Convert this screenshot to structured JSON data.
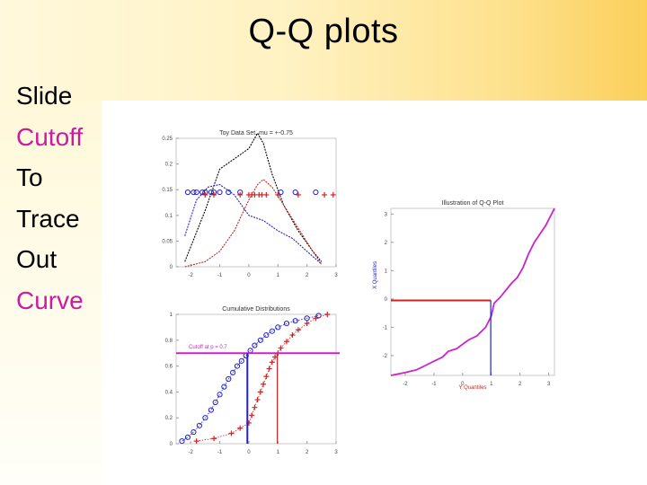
{
  "slide": {
    "title": "Q-Q plots",
    "bullets": [
      {
        "text": "Slide",
        "color": "#000000"
      },
      {
        "text": "Cutoff",
        "color": "#cc1aa3"
      },
      {
        "text": "To",
        "color": "#000000"
      },
      {
        "text": "Trace",
        "color": "#000000"
      },
      {
        "text": "Out",
        "color": "#000000"
      },
      {
        "text": "Curve",
        "color": "#cc1aa3"
      }
    ]
  },
  "chart_data": [
    {
      "type": "line",
      "title": "Toy Data Set, mu = +-0.75",
      "xlim": [
        -2.5,
        3
      ],
      "ylim": [
        0,
        0.25
      ],
      "x_ticks": [
        "-2",
        "-1",
        "0",
        "1",
        "2",
        "3"
      ],
      "y_ticks": [
        "0",
        "0.05",
        "0.1",
        "0.15",
        "0.2",
        "0.25"
      ],
      "series": [
        {
          "color": "#000000",
          "x": [
            -2.2,
            -1.5,
            -1,
            -0.5,
            0,
            0.3,
            0.5,
            0.8,
            1.2,
            1.7,
            2.2,
            2.5
          ],
          "y": [
            0.01,
            0.11,
            0.19,
            0.21,
            0.23,
            0.26,
            0.24,
            0.18,
            0.12,
            0.07,
            0.03,
            0.01
          ]
        },
        {
          "color": "#2222cc",
          "x": [
            -2.2,
            -1.8,
            -1.4,
            -1,
            -0.5,
            0,
            0.5,
            1,
            1.5,
            2,
            2.5
          ],
          "y": [
            0.06,
            0.13,
            0.155,
            0.16,
            0.14,
            0.1,
            0.09,
            0.07,
            0.055,
            0.03,
            0.005
          ]
        },
        {
          "color": "#cc2222",
          "x": [
            -2.2,
            -1.5,
            -1,
            -0.5,
            0,
            0.3,
            0.5,
            0.8,
            1.2,
            1.7,
            2.2,
            2.5
          ],
          "y": [
            0.0,
            0.01,
            0.03,
            0.07,
            0.13,
            0.16,
            0.17,
            0.155,
            0.12,
            0.075,
            0.03,
            0.005
          ]
        }
      ],
      "points": [
        {
          "color": "#2222cc",
          "marker": "circle",
          "y": 0.145,
          "x": [
            -2.1,
            -1.9,
            -1.8,
            -1.6,
            -1.5,
            -1.3,
            -1.2,
            -1.0,
            -0.7,
            -0.3,
            1.1,
            1.6,
            2.3
          ]
        },
        {
          "color": "#cc2222",
          "marker": "plus",
          "y": 0.14,
          "x": [
            -1.5,
            -1.2,
            -0.3,
            0,
            0.1,
            0.2,
            0.35,
            0.45,
            0.6,
            1.0,
            1.7,
            2.6,
            2.9
          ]
        }
      ]
    },
    {
      "type": "scatter",
      "title": "Cumulative Distributions",
      "annotation": "Cutoff at p = 0.7",
      "xlim": [
        -2.5,
        3
      ],
      "ylim": [
        0,
        1
      ],
      "x_ticks": [
        "-2",
        "-1",
        "0",
        "1",
        "2",
        "3"
      ],
      "y_ticks": [
        "0",
        "0.2",
        "0.4",
        "0.6",
        "0.8",
        "1"
      ],
      "cutoff_p": 0.7,
      "cutoff_x": [
        -0.05,
        0.98
      ],
      "series": [
        {
          "color": "#2222cc",
          "marker": "circle",
          "x": [
            -2.3,
            -2.1,
            -1.9,
            -1.7,
            -1.5,
            -1.3,
            -1.15,
            -1.0,
            -0.85,
            -0.7,
            -0.55,
            -0.4,
            -0.25,
            -0.1,
            0.05,
            0.2,
            0.4,
            0.6,
            0.8,
            1.0,
            1.3,
            1.6,
            2.0,
            2.4
          ],
          "y": [
            0.02,
            0.05,
            0.09,
            0.14,
            0.2,
            0.26,
            0.32,
            0.38,
            0.44,
            0.5,
            0.55,
            0.6,
            0.64,
            0.68,
            0.72,
            0.76,
            0.8,
            0.84,
            0.87,
            0.9,
            0.93,
            0.95,
            0.97,
            0.99
          ]
        },
        {
          "color": "#cc2222",
          "marker": "plus",
          "x": [
            -1.8,
            -1.2,
            -0.6,
            -0.3,
            0.0,
            0.1,
            0.2,
            0.3,
            0.4,
            0.5,
            0.6,
            0.7,
            0.8,
            0.9,
            1.0,
            1.1,
            1.3,
            1.5,
            1.7,
            2.0,
            2.3,
            2.7
          ],
          "y": [
            0.02,
            0.04,
            0.08,
            0.12,
            0.16,
            0.22,
            0.28,
            0.34,
            0.4,
            0.46,
            0.52,
            0.58,
            0.63,
            0.67,
            0.7,
            0.74,
            0.79,
            0.84,
            0.88,
            0.93,
            0.97,
            1.0
          ]
        }
      ]
    },
    {
      "type": "line",
      "title": "Illustration of Q-Q Plot",
      "xlabel": "Y Quantiles",
      "ylabel": "X Quantiles",
      "xlim": [
        -2.5,
        3.2
      ],
      "ylim": [
        -2.7,
        3.2
      ],
      "x_ticks": [
        "-2",
        "-1",
        "0",
        "1",
        "2",
        "3"
      ],
      "y_ticks": [
        "-2",
        "-1",
        "0",
        "1",
        "2",
        "3"
      ],
      "cutoff_x": 0.98,
      "cutoff_y": -0.05,
      "series": [
        {
          "color": "#cc22cc",
          "x": [
            -2.5,
            -2.0,
            -1.6,
            -1.3,
            -1.0,
            -0.7,
            -0.5,
            -0.2,
            0.0,
            0.2,
            0.5,
            0.8,
            1.0,
            1.1,
            1.3,
            1.5,
            1.7,
            1.9,
            2.1,
            2.3,
            2.5,
            2.7,
            2.9,
            3.2
          ],
          "y": [
            -2.7,
            -2.6,
            -2.5,
            -2.35,
            -2.2,
            -2.05,
            -1.85,
            -1.75,
            -1.6,
            -1.45,
            -1.3,
            -1.0,
            -0.6,
            -0.15,
            0.05,
            0.3,
            0.55,
            0.75,
            1.1,
            1.6,
            2.0,
            2.3,
            2.6,
            3.2
          ]
        }
      ]
    }
  ]
}
